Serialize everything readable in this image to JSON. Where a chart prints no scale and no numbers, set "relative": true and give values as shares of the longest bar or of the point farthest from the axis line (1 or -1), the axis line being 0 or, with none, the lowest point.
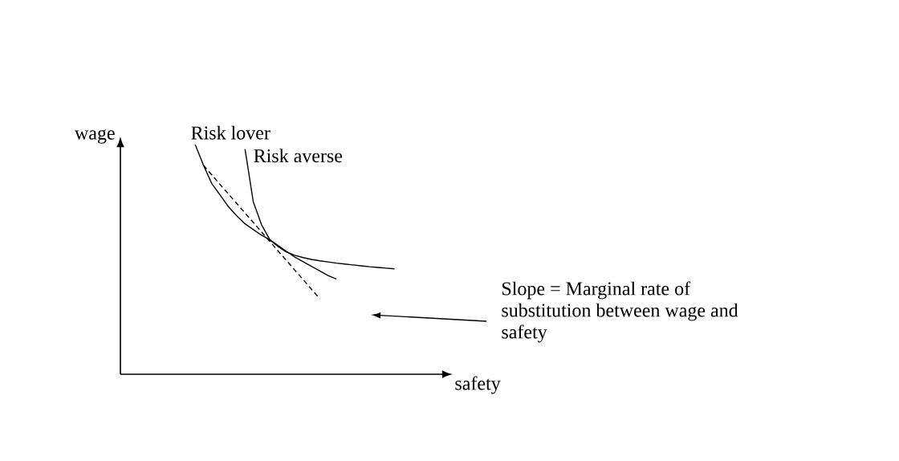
{
  "chart_data": {
    "type": "line",
    "relative": true,
    "xlabel": "safety",
    "ylabel": "wage",
    "legend": false,
    "marker": "none",
    "categories": [
      null,
      null,
      null,
      null,
      null,
      null,
      null,
      null,
      null,
      null,
      null,
      null,
      null,
      null,
      null,
      null,
      null,
      null,
      null,
      null,
      null,
      null,
      null,
      null,
      null,
      null,
      null,
      null,
      null,
      null,
      null,
      null,
      null,
      null,
      null,
      null,
      null,
      null,
      null,
      null,
      null
    ],
    "series": [
      {
        "name": "Risk lover",
        "color": "#000000",
        "line_style": "solid",
        "values": [
          null,
          null,
          null,
          null,
          null,
          null,
          null,
          null,
          null,
          1.0,
          0.91,
          0.83,
          0.78,
          0.73,
          0.69,
          0.655,
          0.63,
          0.605,
          0.585,
          0.56,
          0.535,
          0.51,
          0.49,
          0.47,
          0.45,
          0.43,
          0.415,
          null,
          null,
          null,
          null,
          null,
          null,
          null,
          null,
          null,
          null,
          null,
          null,
          null,
          null
        ]
      },
      {
        "name": "Risk averse",
        "color": "#000000",
        "line_style": "solid",
        "values": [
          null,
          null,
          null,
          null,
          null,
          null,
          null,
          null,
          null,
          null,
          null,
          null,
          null,
          null,
          null,
          0.98,
          0.75,
          0.65,
          0.585,
          0.555,
          0.532,
          0.518,
          0.508,
          0.5,
          0.494,
          0.489,
          0.484,
          0.48,
          0.476,
          0.472,
          0.468,
          0.465,
          0.462,
          0.459,
          null,
          null,
          null,
          null,
          null,
          null,
          null
        ]
      },
      {
        "color": "#000000",
        "line_style": "dashed",
        "values": [
          null,
          null,
          null,
          null,
          null,
          null,
          null,
          null,
          null,
          null,
          0.909,
          0.868,
          0.826,
          0.785,
          0.744,
          0.702,
          0.661,
          0.619,
          0.578,
          0.536,
          0.495,
          0.453,
          0.412,
          0.37,
          0.329,
          null,
          null,
          null,
          null,
          null,
          null,
          null,
          null,
          null,
          null,
          null,
          null,
          null,
          null,
          null,
          null
        ]
      }
    ],
    "annotations": [
      "Slope = Marginal rate of substitution between wage and safety"
    ]
  }
}
